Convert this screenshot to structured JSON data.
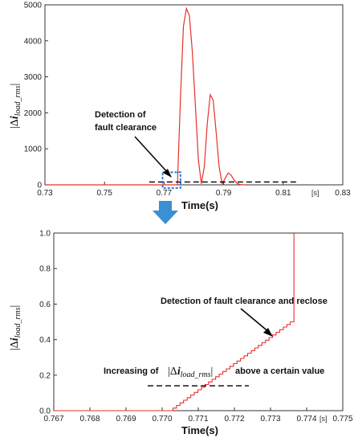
{
  "chart_data": [
    {
      "type": "line",
      "xlabel": "Time(s)",
      "x_unit": "[s]",
      "ylabel": "|Δi_load_rms|",
      "xlim": [
        0.73,
        0.83
      ],
      "ylim": [
        0,
        5000
      ],
      "x_ticks": [
        "0.73",
        "0.75",
        "0.77",
        "0.79",
        "0.81",
        "0.83"
      ],
      "y_ticks": [
        "0",
        "1000",
        "2000",
        "3000",
        "4000",
        "5000"
      ],
      "series": [
        {
          "color": "#e8302a",
          "x": [
            0.73,
            0.7745,
            0.7746,
            0.7755,
            0.7765,
            0.7775,
            0.7785,
            0.7795,
            0.7805,
            0.7815,
            0.7825,
            0.7835,
            0.7845,
            0.7855,
            0.7865,
            0.7875,
            0.7885,
            0.7895,
            0.7905,
            0.7915,
            0.7925,
            0.7935,
            0.7945,
            0.7955,
            0.7965,
            0.7975
          ],
          "y": [
            0,
            0,
            300,
            2400,
            4400,
            4900,
            4700,
            3700,
            2200,
            700,
            30,
            500,
            1700,
            2500,
            2350,
            1450,
            500,
            30,
            180,
            330,
            270,
            130,
            40,
            10,
            0,
            0
          ]
        }
      ],
      "threshold": {
        "y": 80,
        "x_from": 0.765,
        "x_to": 0.8145
      },
      "detection_box": {
        "x_from": 0.7695,
        "x_to": 0.7755,
        "y_from": 0,
        "y_to": 350
      },
      "annotations": [
        {
          "text": [
            "Detection of",
            "fault clearance"
          ]
        }
      ]
    },
    {
      "type": "line",
      "xlabel": "Time(s)",
      "x_unit": "[s]",
      "ylabel": "|Δi_load_rms|",
      "xlim": [
        0.767,
        0.775
      ],
      "ylim": [
        0,
        1.0
      ],
      "x_ticks": [
        "0.767",
        "0.768",
        "0.769",
        "0.770",
        "0.771",
        "0.772",
        "0.773",
        "0.774",
        "0.775"
      ],
      "y_ticks": [
        "0.0",
        "0.2",
        "0.4",
        "0.6",
        "0.8",
        "1.0"
      ],
      "step_series": {
        "color": "#e8302a",
        "start_x": 0.7702,
        "end_x": 0.77355,
        "end_y": 0.5,
        "steps": 34,
        "vertical_end_x": 0.77365
      },
      "threshold": {
        "y": 0.14,
        "x_from": 0.7696,
        "x_to": 0.7724
      },
      "annotations": [
        {
          "text": "Detection of fault clearance and reclose"
        },
        {
          "text_prefix": "Increasing of",
          "text_suffix": "above a certain value"
        }
      ]
    }
  ],
  "arrow_color": "#3b8fd4"
}
